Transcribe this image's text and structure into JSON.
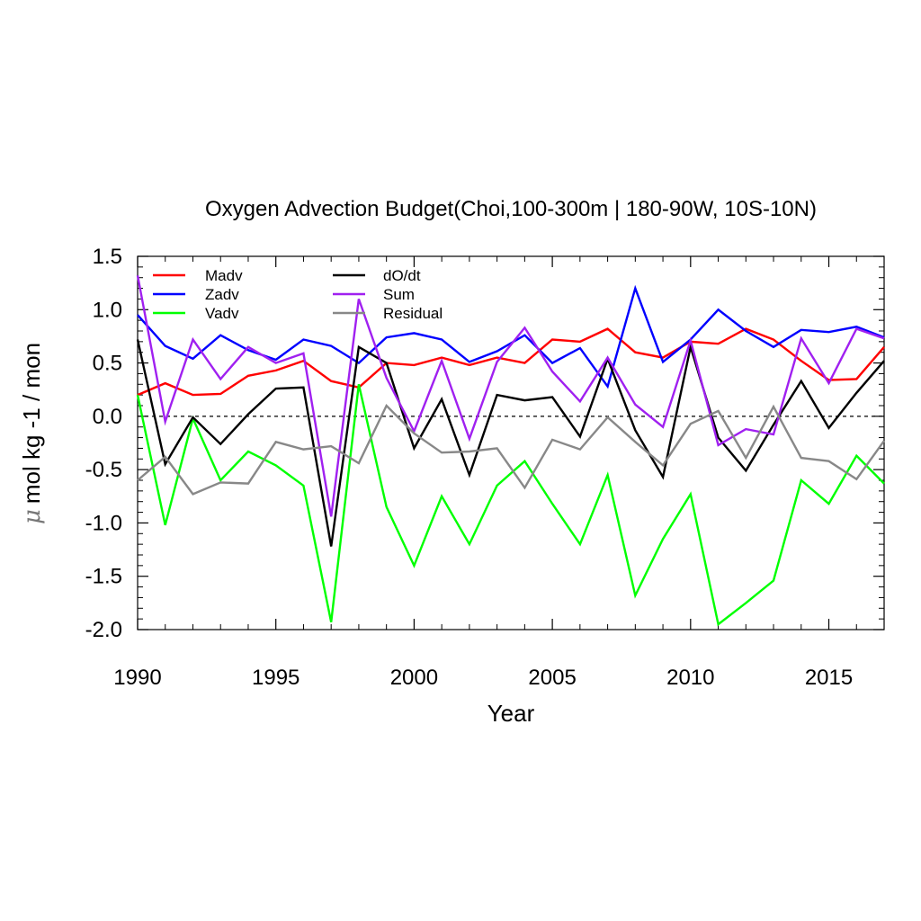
{
  "chart_data": {
    "type": "line",
    "title": "Oxygen Advection Budget(Choi,100-300m | 180-90W, 10S-10N)",
    "xlabel": "Year",
    "ylabel_symbol": "μ",
    "ylabel": "mol kg -1 / mon",
    "xlim": [
      1990,
      2017
    ],
    "ylim": [
      -2.0,
      1.5
    ],
    "x_ticks": [
      "1990",
      "1995",
      "2000",
      "2005",
      "2010",
      "2015"
    ],
    "y_ticks": [
      "1.5",
      "1.0",
      "0.5",
      "0.0",
      "-0.5",
      "-1.0",
      "-1.5",
      "-2.0"
    ],
    "zero_line": true,
    "legend_position": "top-left",
    "x": [
      1990,
      1991,
      1992,
      1993,
      1994,
      1995,
      1996,
      1997,
      1998,
      1999,
      2000,
      2001,
      2002,
      2003,
      2004,
      2005,
      2006,
      2007,
      2008,
      2009,
      2010,
      2011,
      2012,
      2013,
      2014,
      2015,
      2016,
      2017
    ],
    "series": [
      {
        "name": "Madv",
        "color": "#ff0000",
        "values": [
          0.2,
          0.31,
          0.2,
          0.21,
          0.38,
          0.43,
          0.52,
          0.33,
          0.27,
          0.5,
          0.48,
          0.55,
          0.48,
          0.55,
          0.5,
          0.72,
          0.7,
          0.82,
          0.6,
          0.55,
          0.7,
          0.68,
          0.82,
          0.72,
          0.52,
          0.34,
          0.35,
          0.65
        ]
      },
      {
        "name": "Zadv",
        "color": "#0000ff",
        "values": [
          0.95,
          0.66,
          0.54,
          0.76,
          0.62,
          0.53,
          0.72,
          0.66,
          0.5,
          0.74,
          0.78,
          0.72,
          0.51,
          0.61,
          0.76,
          0.5,
          0.64,
          0.28,
          1.2,
          0.51,
          0.72,
          1.0,
          0.8,
          0.65,
          0.81,
          0.79,
          0.84,
          0.74
        ]
      },
      {
        "name": "Vadv",
        "color": "#00ff00",
        "values": [
          0.2,
          -1.02,
          -0.02,
          -0.6,
          -0.33,
          -0.46,
          -0.65,
          -1.93,
          0.3,
          -0.85,
          -1.4,
          -0.75,
          -1.2,
          -0.65,
          -0.42,
          -0.82,
          -1.2,
          -0.55,
          -1.68,
          -1.15,
          -0.73,
          -1.95,
          -1.75,
          -1.54,
          -0.6,
          -0.82,
          -0.37,
          -0.63
        ]
      },
      {
        "name": "dO/dt",
        "color": "#000000",
        "values": [
          0.72,
          -0.45,
          -0.01,
          -0.26,
          0.02,
          0.26,
          0.27,
          -1.22,
          0.65,
          0.5,
          -0.3,
          0.16,
          -0.55,
          0.2,
          0.15,
          0.18,
          -0.19,
          0.54,
          -0.13,
          -0.57,
          0.65,
          -0.2,
          -0.51,
          -0.08,
          0.33,
          -0.11,
          0.22,
          0.52
        ]
      },
      {
        "name": "Sum",
        "color": "#a020f0",
        "values": [
          1.32,
          -0.05,
          0.72,
          0.35,
          0.65,
          0.5,
          0.59,
          -0.94,
          1.1,
          0.36,
          -0.14,
          0.52,
          -0.21,
          0.51,
          0.83,
          0.42,
          0.14,
          0.55,
          0.11,
          -0.1,
          0.71,
          -0.27,
          -0.12,
          -0.17,
          0.73,
          0.31,
          0.82,
          0.73
        ]
      },
      {
        "name": "Residual",
        "color": "#888888",
        "values": [
          -0.6,
          -0.38,
          -0.73,
          -0.62,
          -0.63,
          -0.24,
          -0.31,
          -0.28,
          -0.44,
          0.1,
          -0.16,
          -0.34,
          -0.33,
          -0.3,
          -0.67,
          -0.22,
          -0.31,
          -0.01,
          -0.24,
          -0.46,
          -0.07,
          0.05,
          -0.39,
          0.09,
          -0.39,
          -0.42,
          -0.59,
          -0.23
        ]
      }
    ]
  }
}
